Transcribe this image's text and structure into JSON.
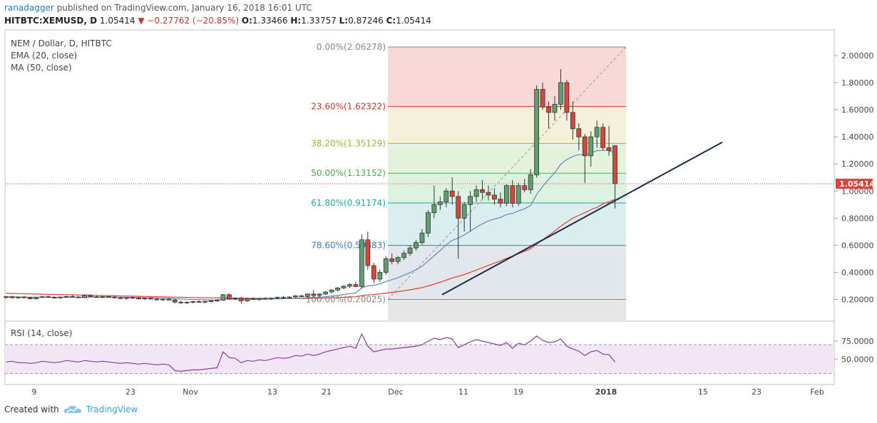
{
  "header": {
    "user": "ranadagger",
    "published": "published on TradingView.com, January 16, 2018 16:01 UTC",
    "symbol": "HITBTC:XEMUSD, D",
    "last": "1.05414",
    "change": "−0.27762 (−20.85%)",
    "o_label": "O:",
    "o": "1.33466",
    "h_label": "H:",
    "h": "1.33757",
    "l_label": "L:",
    "l": "0.87246",
    "c_label": "C:",
    "c": "1.05414"
  },
  "legend": {
    "title": "NEM / Dollar, D, HITBTC",
    "ema": "EMA (20, close)",
    "ma": "MA (50, close)",
    "rsi": "RSI (14, close)"
  },
  "footer": {
    "created": "Created with",
    "brand": "TradingView"
  },
  "colors": {
    "up": "#5f9e6e",
    "down": "#d9453a",
    "ema": "#5b8bb8",
    "ma": "#e43b2c",
    "rsi": "#8b3a9e",
    "rsi_band": "#f3e6f7"
  },
  "chart_data": [
    {
      "type": "candlestick",
      "title": "NEM / Dollar, D, HITBTC",
      "ylim": [
        0.05,
        2.1
      ],
      "yticks": [
        "2.00000",
        "1.80000",
        "1.60000",
        "1.40000",
        "1.20000",
        "1.00000",
        "0.80000",
        "0.60000",
        "0.40000",
        "0.20000"
      ],
      "ytick_values": [
        2.0,
        1.8,
        1.6,
        1.4,
        1.2,
        1.0,
        0.8,
        0.6,
        0.4,
        0.2
      ],
      "xticks": [
        "9",
        "23",
        "Nov",
        "13",
        "21",
        "Dec",
        "11",
        "19",
        "2018",
        "15",
        "23",
        "Feb"
      ],
      "last_price": "1.05414",
      "last_price_value": 1.05414,
      "fib_levels": [
        {
          "label": "0.00%(2.06278)",
          "value": 2.06278,
          "color": "#888888"
        },
        {
          "label": "23.60%(1.62322)",
          "value": 1.62322,
          "color": "#c0392b"
        },
        {
          "label": "38.20%(1.35129)",
          "value": 1.35129,
          "color": "#9ab530"
        },
        {
          "label": "50.00%(1.13152)",
          "value": 1.13152,
          "color": "#4caf50"
        },
        {
          "label": "61.80%(0.91174)",
          "value": 0.91174,
          "color": "#26a69a"
        },
        {
          "label": "78.60%(0.59883)",
          "value": 0.59883,
          "color": "#3a7fb8"
        },
        {
          "label": "100.00%(0.20025)",
          "value": 0.20025,
          "color": "#888888"
        }
      ],
      "candles": [
        [
          0.215,
          0.225,
          0.205,
          0.22
        ],
        [
          0.22,
          0.228,
          0.21,
          0.212
        ],
        [
          0.212,
          0.222,
          0.205,
          0.218
        ],
        [
          0.218,
          0.226,
          0.21,
          0.214
        ],
        [
          0.214,
          0.22,
          0.2,
          0.205
        ],
        [
          0.205,
          0.218,
          0.2,
          0.215
        ],
        [
          0.215,
          0.225,
          0.21,
          0.22
        ],
        [
          0.22,
          0.23,
          0.212,
          0.216
        ],
        [
          0.216,
          0.224,
          0.208,
          0.212
        ],
        [
          0.212,
          0.22,
          0.205,
          0.218
        ],
        [
          0.218,
          0.228,
          0.21,
          0.222
        ],
        [
          0.222,
          0.23,
          0.214,
          0.218
        ],
        [
          0.218,
          0.226,
          0.21,
          0.213
        ],
        [
          0.213,
          0.24,
          0.21,
          0.23
        ],
        [
          0.23,
          0.238,
          0.215,
          0.22
        ],
        [
          0.22,
          0.228,
          0.212,
          0.216
        ],
        [
          0.216,
          0.224,
          0.208,
          0.221
        ],
        [
          0.221,
          0.23,
          0.214,
          0.218
        ],
        [
          0.218,
          0.226,
          0.208,
          0.212
        ],
        [
          0.212,
          0.22,
          0.204,
          0.208
        ],
        [
          0.208,
          0.216,
          0.198,
          0.214
        ],
        [
          0.214,
          0.222,
          0.206,
          0.21
        ],
        [
          0.21,
          0.218,
          0.2,
          0.204
        ],
        [
          0.204,
          0.212,
          0.196,
          0.209
        ],
        [
          0.209,
          0.216,
          0.2,
          0.203
        ],
        [
          0.203,
          0.21,
          0.192,
          0.198
        ],
        [
          0.198,
          0.206,
          0.19,
          0.202
        ],
        [
          0.202,
          0.21,
          0.194,
          0.196
        ],
        [
          0.196,
          0.204,
          0.17,
          0.18
        ],
        [
          0.18,
          0.19,
          0.168,
          0.175
        ],
        [
          0.175,
          0.185,
          0.165,
          0.18
        ],
        [
          0.18,
          0.19,
          0.172,
          0.184
        ],
        [
          0.184,
          0.194,
          0.176,
          0.18
        ],
        [
          0.18,
          0.19,
          0.172,
          0.186
        ],
        [
          0.186,
          0.196,
          0.178,
          0.19
        ],
        [
          0.19,
          0.2,
          0.182,
          0.195
        ],
        [
          0.195,
          0.24,
          0.19,
          0.235
        ],
        [
          0.235,
          0.245,
          0.2,
          0.205
        ],
        [
          0.205,
          0.215,
          0.195,
          0.21
        ],
        [
          0.21,
          0.22,
          0.17,
          0.19
        ],
        [
          0.19,
          0.21,
          0.18,
          0.205
        ],
        [
          0.205,
          0.215,
          0.196,
          0.2
        ],
        [
          0.2,
          0.212,
          0.19,
          0.208
        ],
        [
          0.208,
          0.218,
          0.2,
          0.204
        ],
        [
          0.204,
          0.214,
          0.196,
          0.21
        ],
        [
          0.21,
          0.222,
          0.2,
          0.215
        ],
        [
          0.215,
          0.226,
          0.206,
          0.212
        ],
        [
          0.212,
          0.222,
          0.204,
          0.218
        ],
        [
          0.218,
          0.232,
          0.21,
          0.226
        ],
        [
          0.226,
          0.236,
          0.216,
          0.222
        ],
        [
          0.222,
          0.245,
          0.215,
          0.24
        ],
        [
          0.24,
          0.27,
          0.22,
          0.23
        ],
        [
          0.23,
          0.245,
          0.22,
          0.24
        ],
        [
          0.24,
          0.262,
          0.232,
          0.255
        ],
        [
          0.255,
          0.275,
          0.245,
          0.27
        ],
        [
          0.27,
          0.29,
          0.26,
          0.285
        ],
        [
          0.285,
          0.305,
          0.275,
          0.298
        ],
        [
          0.298,
          0.32,
          0.285,
          0.31
        ],
        [
          0.31,
          0.33,
          0.29,
          0.295
        ],
        [
          0.295,
          0.68,
          0.28,
          0.64
        ],
        [
          0.64,
          0.7,
          0.42,
          0.45
        ],
        [
          0.45,
          0.47,
          0.32,
          0.35
        ],
        [
          0.35,
          0.42,
          0.33,
          0.4
        ],
        [
          0.4,
          0.52,
          0.38,
          0.5
        ],
        [
          0.5,
          0.54,
          0.46,
          0.48
        ],
        [
          0.48,
          0.52,
          0.46,
          0.51
        ],
        [
          0.51,
          0.56,
          0.49,
          0.54
        ],
        [
          0.54,
          0.6,
          0.52,
          0.58
        ],
        [
          0.58,
          0.64,
          0.56,
          0.62
        ],
        [
          0.62,
          0.72,
          0.6,
          0.69
        ],
        [
          0.69,
          0.86,
          0.66,
          0.84
        ],
        [
          0.84,
          1.04,
          0.8,
          0.9
        ],
        [
          0.9,
          0.96,
          0.86,
          0.92
        ],
        [
          0.92,
          1.02,
          0.88,
          1.0
        ],
        [
          1.0,
          1.1,
          0.9,
          0.96
        ],
        [
          0.96,
          1.0,
          0.5,
          0.8
        ],
        [
          0.8,
          0.92,
          0.7,
          0.9
        ],
        [
          0.9,
          1.0,
          0.7,
          0.96
        ],
        [
          0.96,
          1.04,
          0.92,
          1.01
        ],
        [
          1.01,
          1.08,
          0.94,
          0.99
        ],
        [
          0.99,
          1.04,
          0.93,
          0.97
        ],
        [
          0.97,
          1.02,
          0.9,
          0.94
        ],
        [
          0.94,
          0.99,
          0.88,
          0.91
        ],
        [
          0.91,
          1.05,
          0.89,
          1.04
        ],
        [
          1.04,
          1.08,
          0.88,
          0.91
        ],
        [
          0.91,
          1.06,
          0.89,
          1.04
        ],
        [
          1.04,
          1.09,
          0.99,
          1.01
        ],
        [
          1.01,
          1.16,
          0.98,
          1.12
        ],
        [
          1.12,
          1.78,
          1.1,
          1.75
        ],
        [
          1.75,
          1.8,
          1.6,
          1.62
        ],
        [
          1.62,
          1.66,
          1.46,
          1.58
        ],
        [
          1.58,
          1.7,
          1.52,
          1.64
        ],
        [
          1.64,
          1.9,
          1.6,
          1.8
        ],
        [
          1.8,
          1.82,
          1.52,
          1.58
        ],
        [
          1.58,
          1.66,
          1.38,
          1.46
        ],
        [
          1.46,
          1.5,
          1.3,
          1.4
        ],
        [
          1.4,
          1.42,
          1.06,
          1.26
        ],
        [
          1.26,
          1.44,
          1.18,
          1.4
        ],
        [
          1.4,
          1.52,
          1.32,
          1.47
        ],
        [
          1.47,
          1.5,
          1.3,
          1.32
        ],
        [
          1.32,
          1.48,
          1.26,
          1.3
        ],
        [
          1.334,
          1.338,
          0.872,
          1.054
        ]
      ],
      "ema20": [
        0.219,
        0.219,
        0.218,
        0.218,
        0.217,
        0.217,
        0.217,
        0.217,
        0.216,
        0.216,
        0.217,
        0.217,
        0.217,
        0.218,
        0.218,
        0.218,
        0.218,
        0.218,
        0.217,
        0.216,
        0.216,
        0.215,
        0.214,
        0.213,
        0.212,
        0.211,
        0.209,
        0.208,
        0.205,
        0.203,
        0.201,
        0.2,
        0.199,
        0.198,
        0.197,
        0.197,
        0.201,
        0.201,
        0.202,
        0.201,
        0.201,
        0.201,
        0.202,
        0.202,
        0.203,
        0.204,
        0.205,
        0.207,
        0.209,
        0.21,
        0.213,
        0.215,
        0.217,
        0.22,
        0.225,
        0.23,
        0.236,
        0.243,
        0.248,
        0.285,
        0.3,
        0.305,
        0.314,
        0.332,
        0.346,
        0.361,
        0.379,
        0.398,
        0.419,
        0.445,
        0.483,
        0.523,
        0.561,
        0.603,
        0.636,
        0.652,
        0.676,
        0.704,
        0.733,
        0.758,
        0.779,
        0.794,
        0.805,
        0.827,
        0.835,
        0.854,
        0.869,
        0.892,
        0.974,
        1.034,
        1.086,
        1.135,
        1.198,
        1.233,
        1.255,
        1.269,
        1.268,
        1.281,
        1.298,
        1.3,
        1.3,
        1.276
      ],
      "ma50": [
        0.245,
        0.244,
        0.243,
        0.242,
        0.241,
        0.24,
        0.239,
        0.238,
        0.237,
        0.236,
        0.235,
        0.234,
        0.233,
        0.232,
        0.231,
        0.23,
        0.229,
        0.228,
        0.227,
        0.226,
        0.225,
        0.224,
        0.223,
        0.222,
        0.221,
        0.22,
        0.219,
        0.218,
        0.217,
        0.216,
        0.215,
        0.214,
        0.213,
        0.212,
        0.212,
        0.211,
        0.211,
        0.21,
        0.21,
        0.209,
        0.209,
        0.208,
        0.208,
        0.208,
        0.207,
        0.207,
        0.207,
        0.207,
        0.207,
        0.208,
        0.208,
        0.209,
        0.21,
        0.211,
        0.212,
        0.214,
        0.216,
        0.218,
        0.22,
        0.228,
        0.233,
        0.236,
        0.241,
        0.247,
        0.252,
        0.258,
        0.264,
        0.271,
        0.279,
        0.288,
        0.3,
        0.313,
        0.327,
        0.343,
        0.358,
        0.37,
        0.384,
        0.4,
        0.417,
        0.434,
        0.451,
        0.468,
        0.485,
        0.503,
        0.52,
        0.538,
        0.556,
        0.574,
        0.608,
        0.64,
        0.672,
        0.705,
        0.74,
        0.77,
        0.8,
        0.82,
        0.84,
        0.862,
        0.88,
        0.905,
        0.92,
        0.94
      ]
    },
    {
      "type": "line",
      "title": "RSI (14, close)",
      "ylim": [
        25,
        95
      ],
      "yticks": [
        "75.0000",
        "50.0000"
      ],
      "ytick_values": [
        75,
        50
      ],
      "bands": [
        70,
        30
      ],
      "values": [
        46,
        47,
        45,
        45,
        44,
        45,
        47,
        46,
        45,
        46,
        48,
        47,
        46,
        48,
        47,
        46,
        47,
        46,
        45,
        44,
        45,
        44,
        43,
        44,
        43,
        42,
        43,
        42,
        34,
        33,
        34,
        35,
        35,
        36,
        37,
        38,
        60,
        52,
        51,
        45,
        48,
        47,
        49,
        48,
        50,
        52,
        51,
        52,
        55,
        54,
        57,
        55,
        57,
        60,
        62,
        64,
        66,
        68,
        65,
        85,
        68,
        60,
        62,
        64,
        64,
        65,
        66,
        67,
        68,
        70,
        75,
        79,
        77,
        80,
        78,
        66,
        70,
        74,
        77,
        75,
        73,
        71,
        69,
        73,
        65,
        72,
        70,
        75,
        82,
        76,
        73,
        74,
        78,
        68,
        64,
        61,
        55,
        60,
        62,
        57,
        56,
        46
      ]
    }
  ]
}
